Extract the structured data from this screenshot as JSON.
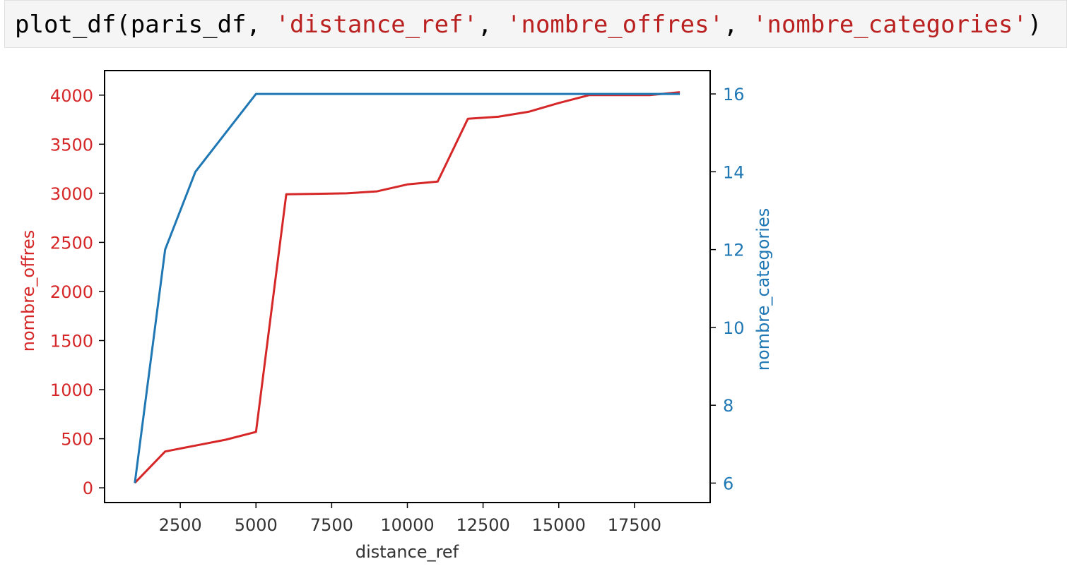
{
  "code_cell": {
    "tokens": [
      {
        "text": "plot_df(paris_df, ",
        "type": "plain"
      },
      {
        "text": "'distance_ref'",
        "type": "str"
      },
      {
        "text": ", ",
        "type": "plain"
      },
      {
        "text": "'nombre_offres'",
        "type": "str"
      },
      {
        "text": ", ",
        "type": "plain"
      },
      {
        "text": "'nombre_categories'",
        "type": "str"
      },
      {
        "text": ")",
        "type": "plain"
      }
    ]
  },
  "colors": {
    "left_axis": "#d62728",
    "right_axis": "#1f77b4",
    "string_literal": "#ba2121"
  },
  "chart_data": {
    "type": "line",
    "title": "",
    "xlabel": "distance_ref",
    "ylabel": "nombre_offres",
    "y2label": "nombre_categories",
    "xlim": [
      0,
      20000
    ],
    "ylim": [
      -150,
      4250
    ],
    "y2lim": [
      5.5,
      16.6
    ],
    "xticks": [
      2500,
      5000,
      7500,
      10000,
      12500,
      15000,
      17500
    ],
    "yticks": [
      0,
      500,
      1000,
      1500,
      2000,
      2500,
      3000,
      3500,
      4000
    ],
    "y2ticks": [
      6,
      8,
      10,
      12,
      14,
      16
    ],
    "grid": false,
    "x": [
      1000,
      2000,
      3000,
      4000,
      5000,
      6000,
      7000,
      8000,
      9000,
      10000,
      11000,
      12000,
      13000,
      14000,
      15000,
      16000,
      17000,
      18000,
      19000
    ],
    "series": [
      {
        "name": "nombre_offres",
        "axis": "left",
        "values": [
          50,
          370,
          430,
          490,
          570,
          2990,
          2995,
          3000,
          3020,
          3090,
          3120,
          3760,
          3780,
          3830,
          3920,
          4000,
          4000,
          4000,
          4030
        ]
      },
      {
        "name": "nombre_categories",
        "axis": "right",
        "values": [
          6,
          12,
          14,
          15,
          16,
          16,
          16,
          16,
          16,
          16,
          16,
          16,
          16,
          16,
          16,
          16,
          16,
          16,
          16
        ]
      }
    ]
  }
}
